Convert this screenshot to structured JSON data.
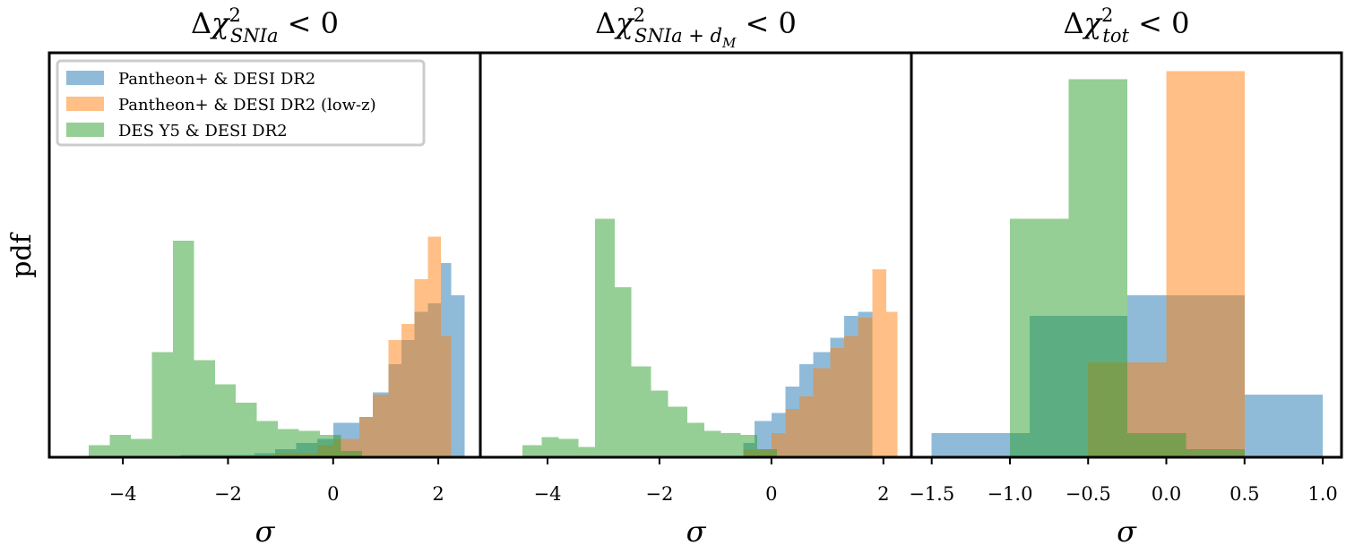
{
  "colors": {
    "blue": "#1f77b4",
    "orange": "#ff7f0e",
    "green": "#2ca02c"
  },
  "bar_opacity": 0.5,
  "ylabel": "pdf",
  "xlabel": "σ",
  "legend": {
    "placement": "upper-left of first panel",
    "entries": [
      {
        "label": "Pantheon+ & DESI DR2",
        "color": "#1f77b4"
      },
      {
        "label": "Pantheon+ & DESI DR2 (low-z)",
        "color": "#ff7f0e"
      },
      {
        "label": "DES Y5 & DESI DR2",
        "color": "#2ca02c"
      }
    ]
  },
  "chart_data": [
    {
      "type": "histogram",
      "title": {
        "main": "Δχ",
        "sup": "2",
        "sub": "SNIa",
        "rel": " < 0"
      },
      "xlabel": "σ",
      "ylabel": "pdf",
      "xlim": [
        -5.4,
        2.8
      ],
      "ylim": [
        0,
        1.0
      ],
      "xticks": [
        -4,
        -2,
        0,
        2
      ],
      "xtick_labels": [
        "−4",
        "−2",
        "0",
        "2"
      ],
      "grid": false,
      "series": [
        {
          "name": "Pantheon+ & DESI DR2",
          "color": "#1f77b4",
          "bins": [
            [
              -2.9,
              -2.5,
              0.006
            ],
            [
              -2.5,
              -2.1,
              0.006
            ],
            [
              -2.1,
              -1.5,
              0.006
            ],
            [
              -1.5,
              -1.1,
              0.01
            ],
            [
              -1.1,
              -0.7,
              0.02
            ],
            [
              -0.7,
              -0.3,
              0.035
            ],
            [
              -0.3,
              0,
              0.045
            ],
            [
              0,
              0.5,
              0.085
            ],
            [
              0.5,
              0.75,
              0.1
            ],
            [
              0.75,
              1.05,
              0.16
            ],
            [
              1.05,
              1.3,
              0.23
            ],
            [
              1.3,
              1.55,
              0.29
            ],
            [
              1.55,
              1.8,
              0.36
            ],
            [
              1.8,
              2.05,
              0.38
            ],
            [
              2.05,
              2.25,
              0.48
            ],
            [
              2.25,
              2.5,
              0.4
            ]
          ]
        },
        {
          "name": "Pantheon+ & DESI DR2 (low-z)",
          "color": "#ff7f0e",
          "bins": [
            [
              -2.1,
              -1.1,
              0.004
            ],
            [
              -1.1,
              -0.3,
              0.01
            ],
            [
              -0.3,
              0,
              0.03
            ],
            [
              0,
              0.5,
              0.045
            ],
            [
              0.5,
              0.75,
              0.1
            ],
            [
              0.75,
              1.05,
              0.155
            ],
            [
              1.05,
              1.3,
              0.29
            ],
            [
              1.3,
              1.55,
              0.33
            ],
            [
              1.55,
              1.8,
              0.44
            ],
            [
              1.8,
              2.05,
              0.545
            ],
            [
              2.05,
              2.25,
              0.3
            ]
          ]
        },
        {
          "name": "DES Y5 & DESI DR2",
          "color": "#2ca02c",
          "bins": [
            [
              -4.65,
              -4.25,
              0.03
            ],
            [
              -4.25,
              -3.85,
              0.055
            ],
            [
              -3.85,
              -3.45,
              0.045
            ],
            [
              -3.45,
              -3.05,
              0.26
            ],
            [
              -3.05,
              -2.65,
              0.535
            ],
            [
              -2.65,
              -2.25,
              0.24
            ],
            [
              -2.25,
              -1.85,
              0.18
            ],
            [
              -1.85,
              -1.45,
              0.135
            ],
            [
              -1.45,
              -1.05,
              0.09
            ],
            [
              -1.05,
              -0.65,
              0.07
            ],
            [
              -0.65,
              -0.25,
              0.065
            ],
            [
              -0.25,
              0.15,
              0.055
            ],
            [
              0.15,
              0.55,
              0.015
            ]
          ]
        }
      ]
    },
    {
      "type": "histogram",
      "title": {
        "main": "Δχ",
        "sup": "2",
        "sub": "SNIa + d",
        "subsub": "M",
        "rel": " < 0"
      },
      "xlabel": "σ",
      "ylabel": "",
      "xlim": [
        -5.2,
        2.5
      ],
      "ylim": [
        0,
        1.0
      ],
      "xticks": [
        -4,
        -2,
        0,
        2
      ],
      "xtick_labels": [
        "−4",
        "−2",
        "0",
        "2"
      ],
      "grid": false,
      "series": [
        {
          "name": "Pantheon+ & DESI DR2",
          "color": "#1f77b4",
          "bins": [
            [
              -1.5,
              -0.5,
              0.003
            ],
            [
              -0.5,
              -0.3,
              0.035
            ],
            [
              -0.3,
              0,
              0.09
            ],
            [
              0,
              0.25,
              0.11
            ],
            [
              0.25,
              0.5,
              0.175
            ],
            [
              0.5,
              0.75,
              0.23
            ],
            [
              0.75,
              1.05,
              0.26
            ],
            [
              1.05,
              1.3,
              0.295
            ],
            [
              1.3,
              1.55,
              0.35
            ],
            [
              1.55,
              1.8,
              0.36
            ]
          ]
        },
        {
          "name": "Pantheon+ & DESI DR2 (low-z)",
          "color": "#ff7f0e",
          "bins": [
            [
              -1.5,
              -0.5,
              0.002
            ],
            [
              -0.5,
              0,
              0.02
            ],
            [
              0,
              0.25,
              0.06
            ],
            [
              0.25,
              0.5,
              0.12
            ],
            [
              0.5,
              0.75,
              0.15
            ],
            [
              0.75,
              1.05,
              0.22
            ],
            [
              1.05,
              1.3,
              0.27
            ],
            [
              1.3,
              1.55,
              0.3
            ],
            [
              1.55,
              1.8,
              0.345
            ],
            [
              1.8,
              2.05,
              0.465
            ],
            [
              2.05,
              2.25,
              0.36
            ]
          ]
        },
        {
          "name": "DES Y5 & DESI DR2",
          "color": "#2ca02c",
          "bins": [
            [
              -4.45,
              -4.1,
              0.03
            ],
            [
              -4.1,
              -3.8,
              0.05
            ],
            [
              -3.8,
              -3.45,
              0.045
            ],
            [
              -3.45,
              -3.15,
              0.025
            ],
            [
              -3.15,
              -2.8,
              0.59
            ],
            [
              -2.8,
              -2.5,
              0.42
            ],
            [
              -2.5,
              -2.15,
              0.225
            ],
            [
              -2.15,
              -1.85,
              0.165
            ],
            [
              -1.85,
              -1.5,
              0.125
            ],
            [
              -1.5,
              -1.2,
              0.085
            ],
            [
              -1.2,
              -0.9,
              0.065
            ],
            [
              -0.9,
              -0.55,
              0.06
            ],
            [
              -0.55,
              -0.25,
              0.055
            ],
            [
              -0.25,
              0.1,
              0.02
            ]
          ]
        }
      ]
    },
    {
      "type": "histogram",
      "title": {
        "main": "Δχ",
        "sup": "2",
        "sub": "tot",
        "rel": " < 0"
      },
      "xlabel": "σ",
      "ylabel": "",
      "xlim": [
        -1.63,
        1.12
      ],
      "ylim": [
        0,
        1.0
      ],
      "xticks": [
        -1.5,
        -1.0,
        -0.5,
        0.0,
        0.5,
        1.0
      ],
      "xtick_labels": [
        "−1.5",
        "−1.0",
        "−0.5",
        "0.0",
        "0.5",
        "1.0"
      ],
      "grid": false,
      "series": [
        {
          "name": "Pantheon+ & DESI DR2",
          "color": "#1f77b4",
          "bins": [
            [
              -1.5,
              -1.0,
              0.06
            ],
            [
              -1.0,
              -0.875,
              0.06
            ],
            [
              -0.875,
              -0.25,
              0.35
            ],
            [
              -0.25,
              0.125,
              0.4
            ],
            [
              0.125,
              0.5,
              0.4
            ],
            [
              0.5,
              1.0,
              0.155
            ]
          ]
        },
        {
          "name": "Pantheon+ & DESI DR2 (low-z)",
          "color": "#ff7f0e",
          "bins": [
            [
              -0.5,
              0.0,
              0.235
            ],
            [
              0.0,
              0.5,
              0.955
            ]
          ]
        },
        {
          "name": "DES Y5 & DESI DR2",
          "color": "#2ca02c",
          "bins": [
            [
              -1.0,
              -0.625,
              0.59
            ],
            [
              -0.625,
              -0.25,
              0.935
            ],
            [
              -0.25,
              0.125,
              0.06
            ],
            [
              0.125,
              0.5,
              0.02
            ]
          ]
        }
      ]
    }
  ]
}
